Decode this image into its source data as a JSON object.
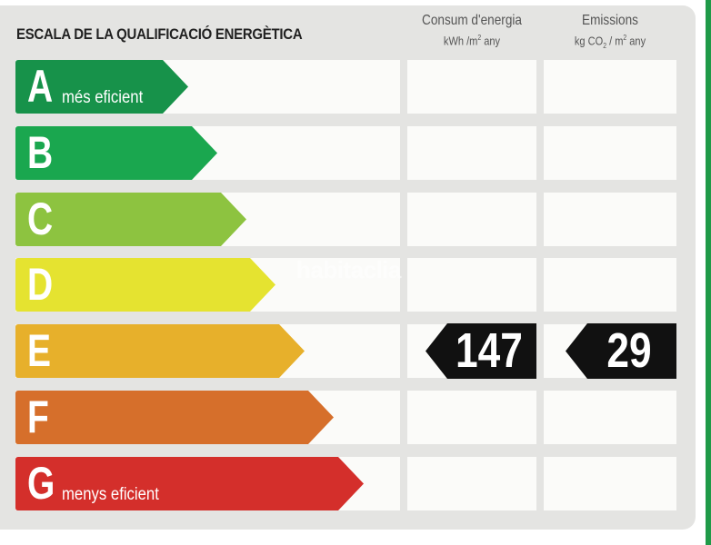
{
  "header": {
    "title": "ESCALA DE LA QUALIFICACIÓ ENERGÈTICA",
    "consum": {
      "label": "Consum d'energia",
      "unit_prefix": "kWh /m",
      "unit_exp": "2",
      "unit_suffix": " any"
    },
    "emissions": {
      "label": "Emissions",
      "unit_prefix": "kg CO",
      "unit_sub": "2",
      "unit_mid": " / m",
      "unit_exp": "2",
      "unit_suffix": " any"
    }
  },
  "ratings": [
    {
      "letter": "A",
      "sublabel": "més eficient",
      "color": "#17924a"
    },
    {
      "letter": "B",
      "sublabel": "",
      "color": "#1aa74f"
    },
    {
      "letter": "C",
      "sublabel": "",
      "color": "#8dc340"
    },
    {
      "letter": "D",
      "sublabel": "",
      "color": "#e5e330"
    },
    {
      "letter": "E",
      "sublabel": "",
      "color": "#e7b02b"
    },
    {
      "letter": "F",
      "sublabel": "",
      "color": "#d66f2b"
    },
    {
      "letter": "G",
      "sublabel": "menys eficient",
      "color": "#d42f2b"
    }
  ],
  "current_rating": "E",
  "values": {
    "consum": "147",
    "emissions": "29"
  },
  "watermark": "habitaclia"
}
